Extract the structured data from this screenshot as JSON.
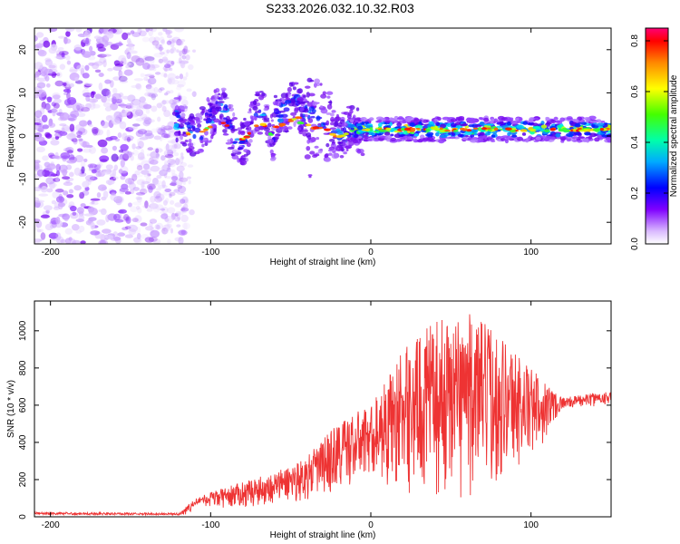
{
  "title": "S233.2026.032.10.32.R03",
  "chart_data": [
    {
      "type": "heatmap",
      "name": "spectrogram",
      "xlabel": "Height of straight line (km)",
      "ylabel": "Frequency (Hz)",
      "xlim": [
        -210,
        150
      ],
      "ylim": [
        -25,
        25
      ],
      "xticks": [
        -200,
        -100,
        0,
        100
      ],
      "yticks": [
        -20,
        -10,
        0,
        10,
        20
      ],
      "colorbar": {
        "label": "Normalized spectral amplitude",
        "range": [
          0.0,
          0.85
        ],
        "ticks": [
          "0.0",
          "0.2",
          "0.4",
          "0.6",
          "0.8"
        ]
      },
      "description_points": {
        "noise_region_km": [
          -210,
          -120
        ],
        "carrier_start_km": -120,
        "carrier_frequency_hz": 1.5,
        "perturbed_region_km": [
          -110,
          -10
        ],
        "perturbation_peak_hz": 9
      }
    },
    {
      "type": "line",
      "name": "snr",
      "xlabel": "Height of straight line (km)",
      "ylabel": "SNR (10 * v/v)",
      "xlim": [
        -210,
        150
      ],
      "ylim": [
        0,
        1160
      ],
      "xticks": [
        -200,
        -100,
        0,
        100
      ],
      "yticks": [
        0,
        200,
        400,
        600,
        800,
        1000
      ],
      "color": "#ee3333",
      "envelope": [
        {
          "x": -210,
          "y": 25
        },
        {
          "x": -120,
          "y": 20
        },
        {
          "x": -108,
          "y": 110
        },
        {
          "x": -90,
          "y": 160
        },
        {
          "x": -60,
          "y": 240
        },
        {
          "x": -40,
          "y": 320
        },
        {
          "x": -20,
          "y": 520
        },
        {
          "x": 0,
          "y": 600
        },
        {
          "x": 20,
          "y": 900
        },
        {
          "x": 40,
          "y": 1050
        },
        {
          "x": 60,
          "y": 1100
        },
        {
          "x": 80,
          "y": 1000
        },
        {
          "x": 100,
          "y": 800
        },
        {
          "x": 120,
          "y": 640
        },
        {
          "x": 150,
          "y": 680
        }
      ],
      "floor": [
        {
          "x": -210,
          "y": 5
        },
        {
          "x": -120,
          "y": 5
        },
        {
          "x": -100,
          "y": 40
        },
        {
          "x": -60,
          "y": 60
        },
        {
          "x": -20,
          "y": 110
        },
        {
          "x": 0,
          "y": 200
        },
        {
          "x": 20,
          "y": 120
        },
        {
          "x": 60,
          "y": 80
        },
        {
          "x": 100,
          "y": 280
        },
        {
          "x": 120,
          "y": 580
        },
        {
          "x": 150,
          "y": 600
        }
      ]
    }
  ]
}
